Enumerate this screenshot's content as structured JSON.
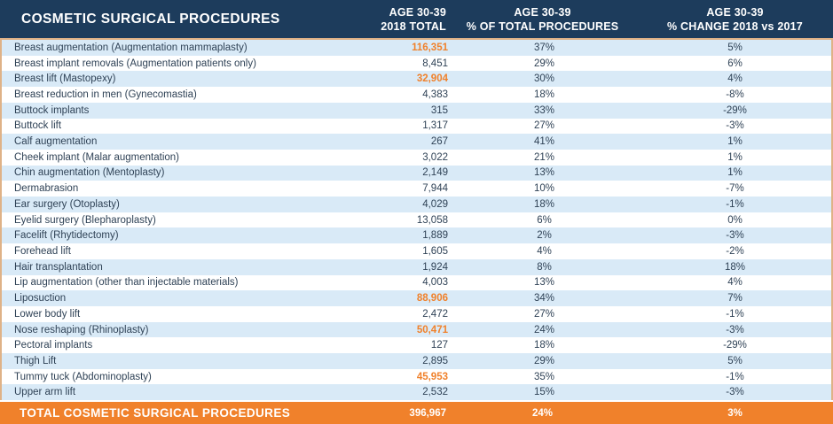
{
  "colors": {
    "header_background": "#1d3c5c",
    "accent_orange": "#f0812b",
    "row_stripe_blue": "#d9eaf7",
    "row_text": "#2f4256",
    "border_tan": "#dfb287"
  },
  "table": {
    "title": "COSMETIC SURGICAL PROCEDURES",
    "columns": [
      {
        "line1": "AGE 30-39",
        "line2": "2018 TOTAL"
      },
      {
        "line1": "AGE 30-39",
        "line2": "% OF TOTAL PROCEDURES"
      },
      {
        "line1": "AGE 30-39",
        "line2": "% CHANGE 2018 vs 2017"
      }
    ],
    "rows": [
      {
        "procedure": "Breast augmentation (Augmentation mammaplasty)",
        "total": "116,351",
        "highlight": true,
        "pct_of_total": "37%",
        "pct_change": "5%"
      },
      {
        "procedure": "Breast implant removals (Augmentation patients only)",
        "total": "8,451",
        "highlight": false,
        "pct_of_total": "29%",
        "pct_change": "6%"
      },
      {
        "procedure": "Breast lift (Mastopexy)",
        "total": "32,904",
        "highlight": true,
        "pct_of_total": "30%",
        "pct_change": "4%"
      },
      {
        "procedure": "Breast reduction in men (Gynecomastia)",
        "total": "4,383",
        "highlight": false,
        "pct_of_total": "18%",
        "pct_change": "-8%"
      },
      {
        "procedure": "Buttock implants",
        "total": "315",
        "highlight": false,
        "pct_of_total": "33%",
        "pct_change": "-29%"
      },
      {
        "procedure": "Buttock lift",
        "total": "1,317",
        "highlight": false,
        "pct_of_total": "27%",
        "pct_change": "-3%"
      },
      {
        "procedure": "Calf augmentation",
        "total": "267",
        "highlight": false,
        "pct_of_total": "41%",
        "pct_change": "1%"
      },
      {
        "procedure": "Cheek implant (Malar augmentation)",
        "total": "3,022",
        "highlight": false,
        "pct_of_total": "21%",
        "pct_change": "1%"
      },
      {
        "procedure": "Chin augmentation (Mentoplasty)",
        "total": "2,149",
        "highlight": false,
        "pct_of_total": "13%",
        "pct_change": "1%"
      },
      {
        "procedure": "Dermabrasion",
        "total": "7,944",
        "highlight": false,
        "pct_of_total": "10%",
        "pct_change": "-7%"
      },
      {
        "procedure": "Ear surgery (Otoplasty)",
        "total": "4,029",
        "highlight": false,
        "pct_of_total": "18%",
        "pct_change": "-1%"
      },
      {
        "procedure": "Eyelid surgery (Blepharoplasty)",
        "total": "13,058",
        "highlight": false,
        "pct_of_total": "6%",
        "pct_change": "0%"
      },
      {
        "procedure": "Facelift (Rhytidectomy)",
        "total": "1,889",
        "highlight": false,
        "pct_of_total": "2%",
        "pct_change": "-3%"
      },
      {
        "procedure": "Forehead lift",
        "total": "1,605",
        "highlight": false,
        "pct_of_total": "4%",
        "pct_change": "-2%"
      },
      {
        "procedure": "Hair transplantation",
        "total": "1,924",
        "highlight": false,
        "pct_of_total": "8%",
        "pct_change": "18%"
      },
      {
        "procedure": "Lip augmentation (other than injectable materials)",
        "total": "4,003",
        "highlight": false,
        "pct_of_total": "13%",
        "pct_change": "4%"
      },
      {
        "procedure": "Liposuction",
        "total": "88,906",
        "highlight": true,
        "pct_of_total": "34%",
        "pct_change": "7%"
      },
      {
        "procedure": "Lower body lift",
        "total": "2,472",
        "highlight": false,
        "pct_of_total": "27%",
        "pct_change": "-1%"
      },
      {
        "procedure": "Nose reshaping (Rhinoplasty)",
        "total": "50,471",
        "highlight": true,
        "pct_of_total": "24%",
        "pct_change": "-3%"
      },
      {
        "procedure": "Pectoral implants",
        "total": "127",
        "highlight": false,
        "pct_of_total": "18%",
        "pct_change": "-29%"
      },
      {
        "procedure": "Thigh Lift",
        "total": "2,895",
        "highlight": false,
        "pct_of_total": "29%",
        "pct_change": "5%"
      },
      {
        "procedure": "Tummy tuck (Abdominoplasty)",
        "total": "45,953",
        "highlight": true,
        "pct_of_total": "35%",
        "pct_change": "-1%"
      },
      {
        "procedure": "Upper arm lift",
        "total": "2,532",
        "highlight": false,
        "pct_of_total": "15%",
        "pct_change": "-3%"
      }
    ],
    "total_row": {
      "label": "TOTAL COSMETIC SURGICAL PROCEDURES",
      "total": "396,967",
      "pct_of_total": "24%",
      "pct_change": "3%"
    }
  }
}
